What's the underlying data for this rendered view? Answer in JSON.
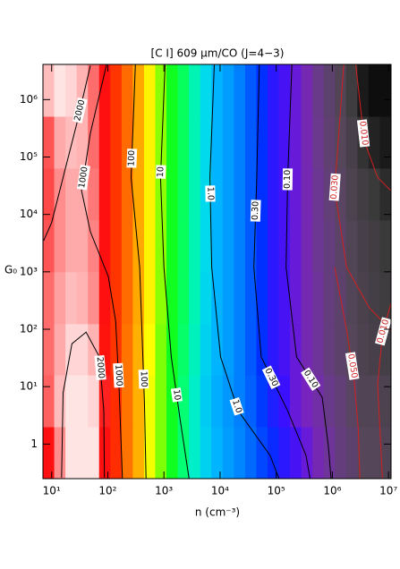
{
  "chart_data": {
    "type": "heatmap",
    "title": "[C I] 609 μm/CO (J=4−3)",
    "x_label": "n (cm⁻³)",
    "y_label": "G₀",
    "xscale": "log",
    "yscale": "log",
    "xlim": [
      7,
      11100000
    ],
    "ylim": [
      0.25,
      4100000
    ],
    "xticks": [
      {
        "value": 10,
        "label": "10¹"
      },
      {
        "value": 100,
        "label": "10²"
      },
      {
        "value": 1000,
        "label": "10³"
      },
      {
        "value": 10000,
        "label": "10⁴"
      },
      {
        "value": 100000,
        "label": "10⁵"
      },
      {
        "value": 1000000,
        "label": "10⁶"
      },
      {
        "value": 10000000,
        "label": "10⁷"
      }
    ],
    "yticks": [
      1,
      {
        "value": 10,
        "label": "10¹"
      },
      {
        "value": 100,
        "label": "10²"
      },
      {
        "value": 1000,
        "label": "10³"
      },
      {
        "value": 10000,
        "label": "10⁴"
      },
      {
        "value": 100000,
        "label": "10⁵"
      },
      {
        "value": 1000000,
        "label": "10⁶"
      }
    ],
    "x_edges": [
      7,
      11.1,
      17.6,
      27.9,
      44.2,
      70,
      111,
      176,
      279,
      442,
      700,
      1110,
      1760,
      2790,
      4420,
      7000,
      11100,
      17600,
      27900,
      44200,
      70000,
      111000,
      176000,
      279000,
      442000,
      700000,
      1110000,
      1760000,
      2790000,
      4420000,
      7000000,
      11100000
    ],
    "y_edges": [
      0.25,
      2,
      16,
      125,
      1000,
      8000,
      64000,
      512000,
      4100000
    ],
    "z": [
      [
        1000,
        2000,
        3000,
        3200,
        3000,
        1000,
        500,
        200,
        100,
        45,
        20,
        10,
        5,
        2.5,
        1.5,
        1.0,
        0.7,
        0.5,
        0.35,
        0.25,
        0.18,
        0.12,
        0.09,
        0.07,
        0.05,
        0.04,
        0.03,
        0.025,
        0.02,
        0.02,
        0.018
      ],
      [
        1600,
        2500,
        3300,
        3300,
        2800,
        1100,
        500,
        200,
        100,
        45,
        20,
        10,
        5,
        2.5,
        1.4,
        0.9,
        0.65,
        0.45,
        0.32,
        0.22,
        0.14,
        0.1,
        0.07,
        0.055,
        0.045,
        0.035,
        0.028,
        0.022,
        0.018,
        0.018,
        0.016
      ],
      [
        1700,
        2300,
        2800,
        2800,
        2400,
        900,
        450,
        200,
        100,
        50,
        20,
        10,
        5.5,
        2.8,
        1.5,
        1.0,
        0.7,
        0.45,
        0.3,
        0.2,
        0.12,
        0.09,
        0.07,
        0.05,
        0.04,
        0.03,
        0.024,
        0.02,
        0.016,
        0.014,
        0.013
      ],
      [
        1700,
        2200,
        2500,
        2400,
        2000,
        1000,
        450,
        220,
        110,
        55,
        22,
        10,
        6,
        3,
        1.6,
        1.0,
        0.7,
        0.45,
        0.3,
        0.2,
        0.12,
        0.09,
        0.07,
        0.05,
        0.04,
        0.03,
        0.024,
        0.019,
        0.015,
        0.013,
        0.011
      ],
      [
        1500,
        2000,
        2300,
        2300,
        1900,
        1000,
        450,
        220,
        110,
        55,
        22,
        10,
        6,
        3,
        1.7,
        1.0,
        0.7,
        0.45,
        0.3,
        0.2,
        0.12,
        0.09,
        0.07,
        0.05,
        0.038,
        0.03,
        0.023,
        0.018,
        0.014,
        0.012,
        0.01
      ],
      [
        1400,
        2000,
        2300,
        2300,
        1800,
        1000,
        450,
        220,
        110,
        55,
        22,
        10,
        6,
        3,
        1.7,
        1.0,
        0.7,
        0.45,
        0.3,
        0.2,
        0.12,
        0.09,
        0.07,
        0.05,
        0.038,
        0.028,
        0.022,
        0.016,
        0.012,
        0.01,
        0.008
      ],
      [
        1500,
        2300,
        2500,
        2400,
        1700,
        1000,
        450,
        220,
        110,
        55,
        22,
        10,
        6,
        3,
        1.7,
        1.0,
        0.7,
        0.45,
        0.3,
        0.2,
        0.12,
        0.09,
        0.07,
        0.05,
        0.036,
        0.026,
        0.02,
        0.014,
        0.009,
        0.007,
        0.006
      ],
      [
        2500,
        3000,
        2800,
        2400,
        1700,
        1000,
        450,
        220,
        110,
        55,
        22,
        10,
        6,
        3,
        1.7,
        1.0,
        0.7,
        0.45,
        0.3,
        0.2,
        0.12,
        0.09,
        0.07,
        0.05,
        0.035,
        0.025,
        0.018,
        0.011,
        0.006,
        0.005,
        0.005
      ]
    ],
    "colorscale": [
      [
        0.004,
        "#000000"
      ],
      [
        0.01,
        "#3a3a3a"
      ],
      [
        0.02,
        "#55465a"
      ],
      [
        0.035,
        "#6a3a8a"
      ],
      [
        0.06,
        "#7a20c8"
      ],
      [
        0.1,
        "#3a10ff"
      ],
      [
        0.2,
        "#0030ff"
      ],
      [
        0.4,
        "#0078ff"
      ],
      [
        1,
        "#00b4ff"
      ],
      [
        2,
        "#00e6e6"
      ],
      [
        4,
        "#00ff90"
      ],
      [
        10,
        "#10ff20"
      ],
      [
        25,
        "#a0ff00"
      ],
      [
        50,
        "#ffff00"
      ],
      [
        100,
        "#ffb000"
      ],
      [
        250,
        "#ff6000"
      ],
      [
        600,
        "#ff2000"
      ],
      [
        1000,
        "#ff1010"
      ],
      [
        1600,
        "#ff6060"
      ],
      [
        2200,
        "#ffa0a0"
      ],
      [
        3000,
        "#ffe4e4"
      ]
    ],
    "contours": [
      {
        "level": 2000,
        "color": "#000000",
        "x": [
          49,
          28,
          16,
          10,
          7.2,
          null,
          15,
          16,
          23,
          41,
          71,
          85,
          87
        ],
        "y": [
          3900000,
          380000,
          44000,
          7200,
          3500,
          null,
          0.26,
          7.8,
          56,
          89,
          33,
          3.8,
          0.26
        ]
      },
      {
        "level": 1000,
        "color": "#000000",
        "x": [
          95,
          49,
          34,
          49,
          102,
          138,
          158,
          182
        ],
        "y": [
          4100000,
          260000,
          26000,
          5000,
          830,
          140,
          11,
          0.25
        ]
      },
      {
        "level": 100,
        "color": "#000000",
        "x": [
          310,
          260,
          370,
          450,
          480
        ],
        "y": [
          4100000,
          44000,
          1200,
          5.4,
          0.25
        ]
      },
      {
        "level": 10,
        "color": "#000000",
        "x": [
          1050,
          870,
          1000,
          1350,
          1950,
          2800
        ],
        "y": [
          4100000,
          44000,
          1200,
          33,
          2.6,
          0.25
        ]
      },
      {
        "level": 1,
        "label": "1.0",
        "color": "#000000",
        "x": [
          7900,
          6600,
          7100,
          10200,
          21000,
          78000,
          112000
        ],
        "y": [
          4100000,
          44000,
          1200,
          33,
          3.8,
          0.63,
          0.25
        ]
      },
      {
        "level": 0.3,
        "label": "0.30",
        "color": "#000000",
        "x": [
          50000,
          45000,
          40000,
          54000,
          160000,
          340000,
          400000
        ],
        "y": [
          4100000,
          44000,
          1200,
          33,
          3.8,
          0.63,
          0.25
        ]
      },
      {
        "level": 0.1,
        "label": "0.10",
        "color": "#000000",
        "x": [
          190000,
          160000,
          150000,
          230000,
          660000,
          850000,
          950000
        ],
        "y": [
          4100000,
          44000,
          1200,
          33,
          6.5,
          0.9,
          0.25
        ]
      },
      {
        "level": 0.05,
        "label": "0.050",
        "color": "#d02020",
        "x": [
          1100000,
          1800000,
          2400000,
          2900000,
          3100000
        ],
        "y": [
          1200,
          96,
          16,
          1.8,
          0.25
        ]
      },
      {
        "level": 0.03,
        "label": "0.030",
        "color": "#d02020",
        "x": [
          1600000,
          1100000,
          1800000,
          4500000,
          11000000
        ],
        "y": [
          4100000,
          27000,
          1200,
          240,
          96
        ]
      },
      {
        "level": 0.01,
        "label": "0.010",
        "color": "#d02020",
        "x": [
          2600000,
          3700000,
          6400000,
          11000000,
          null,
          11000000,
          7800000,
          6400000,
          7800000
        ],
        "y": [
          4100000,
          190000,
          44000,
          26000,
          null,
          280,
          81,
          11,
          0.25
        ]
      }
    ]
  }
}
